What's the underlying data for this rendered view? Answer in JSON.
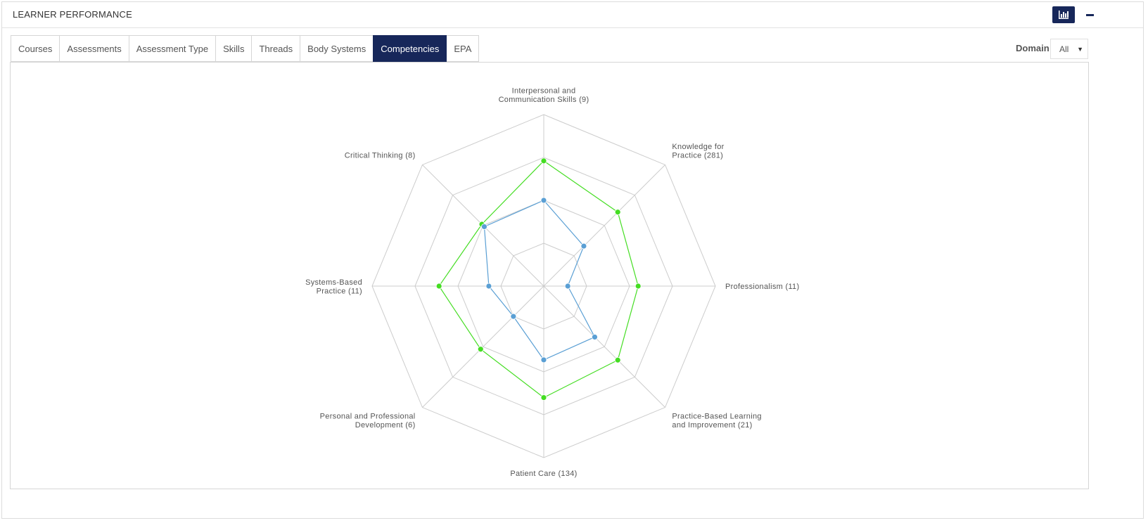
{
  "panel": {
    "title": "LEARNER PERFORMANCE",
    "chart_button_icon": "bar-chart-icon",
    "collapse_icon": "minus-icon"
  },
  "tabs": [
    {
      "label": "Courses",
      "active": false
    },
    {
      "label": "Assessments",
      "active": false
    },
    {
      "label": "Assessment Type",
      "active": false
    },
    {
      "label": "Skills",
      "active": false
    },
    {
      "label": "Threads",
      "active": false
    },
    {
      "label": "Body Systems",
      "active": false
    },
    {
      "label": "Competencies",
      "active": true
    },
    {
      "label": "EPA",
      "active": false
    }
  ],
  "filter": {
    "label": "Domain",
    "selected": "All"
  },
  "colors": {
    "accent": "#17275a",
    "series_green": "#44dd22",
    "series_blue": "#5a9fd4",
    "grid": "#cccccc"
  },
  "chart_data": {
    "type": "radar",
    "categories": [
      [
        "Interpersonal and",
        "Communication Skills (9)"
      ],
      [
        "Knowledge for",
        "Practice (281)"
      ],
      [
        "Professionalism (11)"
      ],
      [
        "Practice-Based Learning",
        "and Improvement (21)"
      ],
      [
        "Patient Care (134)"
      ],
      [
        "Personal and Professional",
        "Development (6)"
      ],
      [
        "Systems-Based",
        "Practice (11)"
      ],
      [
        "Critical Thinking (8)"
      ]
    ],
    "rings": 4,
    "max": 100,
    "grid": true,
    "series": [
      {
        "color": "#44dd22",
        "values": [
          73,
          61,
          55,
          61,
          65,
          52,
          61,
          51
        ]
      },
      {
        "color": "#5a9fd4",
        "values": [
          50,
          33,
          14,
          42,
          43,
          25,
          32,
          49
        ]
      }
    ]
  }
}
